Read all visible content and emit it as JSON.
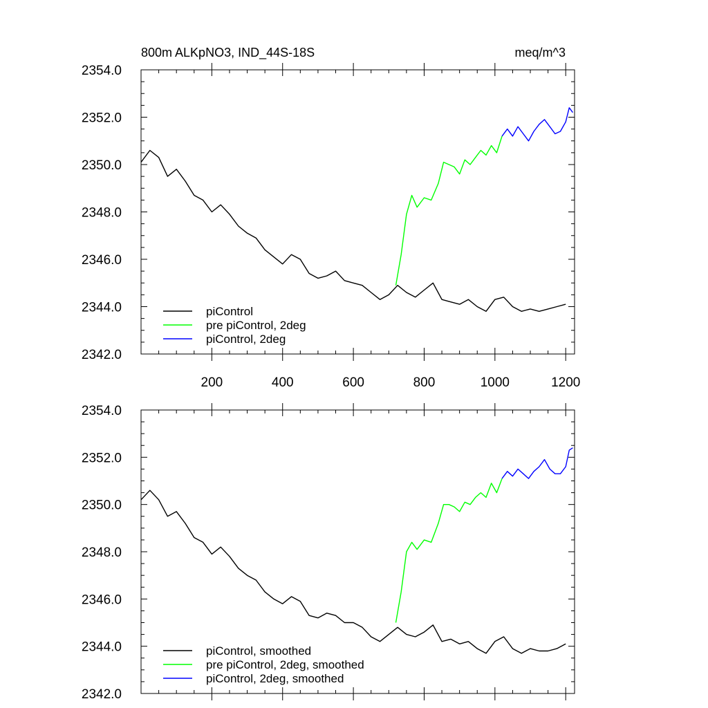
{
  "header": {
    "left": "800m ALKpNO3, IND_44S-18S",
    "right": "meq/m^3"
  },
  "colors": {
    "piControl": "#000000",
    "pre_piControl_2deg": "#00ff00",
    "piControl_2deg": "#0000ff"
  },
  "chart_data": [
    {
      "type": "line",
      "title": "800m ALKpNO3, IND_44S-18S",
      "units": "meq/m^3",
      "xlim": [
        0,
        1225
      ],
      "ylim": [
        2342.0,
        2354.0
      ],
      "x_tick_labels": [
        "200",
        "400",
        "600",
        "800",
        "1000",
        "1200"
      ],
      "y_tick_labels": [
        "2342.0",
        "2344.0",
        "2346.0",
        "2348.0",
        "2350.0",
        "2352.0",
        "2354.0"
      ],
      "legend": [
        "piControl",
        "pre piControl, 2deg",
        "piControl, 2deg"
      ],
      "legend_position": "bottom-left",
      "series": [
        {
          "name": "piControl",
          "color": "#000000",
          "x": [
            0,
            25,
            50,
            75,
            100,
            125,
            150,
            175,
            200,
            225,
            250,
            275,
            300,
            325,
            350,
            375,
            400,
            425,
            450,
            475,
            500,
            525,
            550,
            575,
            600,
            625,
            650,
            675,
            700,
            725,
            750,
            775,
            800,
            825,
            850,
            875,
            900,
            925,
            950,
            975,
            1000,
            1025,
            1050,
            1075,
            1100,
            1125,
            1150,
            1175,
            1200
          ],
          "y": [
            2350.1,
            2350.6,
            2350.3,
            2349.5,
            2349.8,
            2349.3,
            2348.7,
            2348.5,
            2348.0,
            2348.3,
            2347.9,
            2347.4,
            2347.1,
            2346.9,
            2346.4,
            2346.1,
            2345.8,
            2346.2,
            2346.0,
            2345.4,
            2345.2,
            2345.3,
            2345.5,
            2345.1,
            2345.0,
            2344.9,
            2344.6,
            2344.3,
            2344.5,
            2344.9,
            2344.6,
            2344.4,
            2344.7,
            2345.0,
            2344.3,
            2344.2,
            2344.1,
            2344.3,
            2344.0,
            2343.8,
            2344.3,
            2344.4,
            2344.0,
            2343.8,
            2343.9,
            2343.8,
            2343.9,
            2344.0,
            2344.1
          ]
        },
        {
          "name": "pre piControl, 2deg",
          "color": "#00ff00",
          "x": [
            720,
            735,
            750,
            765,
            780,
            800,
            820,
            840,
            855,
            870,
            885,
            900,
            915,
            930,
            945,
            960,
            975,
            990,
            1005,
            1020
          ],
          "y": [
            2344.9,
            2346.2,
            2347.9,
            2348.7,
            2348.2,
            2348.6,
            2348.5,
            2349.2,
            2350.1,
            2350.0,
            2349.9,
            2349.6,
            2350.2,
            2350.0,
            2350.3,
            2350.6,
            2350.4,
            2350.8,
            2350.5,
            2351.2
          ]
        },
        {
          "name": "piControl, 2deg",
          "color": "#0000ff",
          "x": [
            1020,
            1035,
            1050,
            1065,
            1080,
            1095,
            1110,
            1125,
            1140,
            1155,
            1170,
            1185,
            1200,
            1210,
            1220
          ],
          "y": [
            2351.2,
            2351.5,
            2351.2,
            2351.6,
            2351.3,
            2351.0,
            2351.4,
            2351.7,
            2351.9,
            2351.6,
            2351.3,
            2351.4,
            2351.8,
            2352.4,
            2352.2
          ]
        }
      ]
    },
    {
      "type": "line",
      "xlim": [
        0,
        1225
      ],
      "ylim": [
        2342.0,
        2354.0
      ],
      "y_tick_labels": [
        "2342.0",
        "2344.0",
        "2346.0",
        "2348.0",
        "2350.0",
        "2352.0",
        "2354.0"
      ],
      "legend": [
        "piControl, smoothed",
        "pre piControl, 2deg, smoothed",
        "piControl, 2deg, smoothed"
      ],
      "legend_position": "bottom-left",
      "series": [
        {
          "name": "piControl, smoothed",
          "color": "#000000",
          "x": [
            0,
            25,
            50,
            75,
            100,
            125,
            150,
            175,
            200,
            225,
            250,
            275,
            300,
            325,
            350,
            375,
            400,
            425,
            450,
            475,
            500,
            525,
            550,
            575,
            600,
            625,
            650,
            675,
            700,
            725,
            750,
            775,
            800,
            825,
            850,
            875,
            900,
            925,
            950,
            975,
            1000,
            1025,
            1050,
            1075,
            1100,
            1125,
            1150,
            1175,
            1200
          ],
          "y": [
            2350.2,
            2350.6,
            2350.2,
            2349.5,
            2349.7,
            2349.2,
            2348.6,
            2348.4,
            2347.9,
            2348.2,
            2347.8,
            2347.3,
            2347.0,
            2346.8,
            2346.3,
            2346.0,
            2345.8,
            2346.1,
            2345.9,
            2345.3,
            2345.2,
            2345.4,
            2345.3,
            2345.0,
            2345.0,
            2344.8,
            2344.4,
            2344.2,
            2344.5,
            2344.8,
            2344.5,
            2344.4,
            2344.6,
            2344.9,
            2344.2,
            2344.3,
            2344.1,
            2344.2,
            2343.9,
            2343.7,
            2344.2,
            2344.4,
            2343.9,
            2343.7,
            2343.9,
            2343.8,
            2343.8,
            2343.9,
            2344.1
          ]
        },
        {
          "name": "pre piControl, 2deg, smoothed",
          "color": "#00ff00",
          "x": [
            720,
            735,
            750,
            765,
            780,
            800,
            820,
            840,
            855,
            870,
            885,
            900,
            915,
            930,
            945,
            960,
            975,
            990,
            1005,
            1020
          ],
          "y": [
            2345.0,
            2346.3,
            2348.0,
            2348.4,
            2348.1,
            2348.5,
            2348.4,
            2349.2,
            2350.0,
            2350.0,
            2349.9,
            2349.7,
            2350.1,
            2350.0,
            2350.3,
            2350.5,
            2350.3,
            2350.9,
            2350.5,
            2351.1
          ]
        },
        {
          "name": "piControl, 2deg, smoothed",
          "color": "#0000ff",
          "x": [
            1020,
            1035,
            1050,
            1065,
            1080,
            1095,
            1110,
            1125,
            1140,
            1155,
            1170,
            1185,
            1200,
            1210,
            1220
          ],
          "y": [
            2351.1,
            2351.4,
            2351.2,
            2351.5,
            2351.3,
            2351.1,
            2351.4,
            2351.6,
            2351.9,
            2351.5,
            2351.3,
            2351.3,
            2351.6,
            2352.3,
            2352.4
          ]
        }
      ]
    }
  ]
}
